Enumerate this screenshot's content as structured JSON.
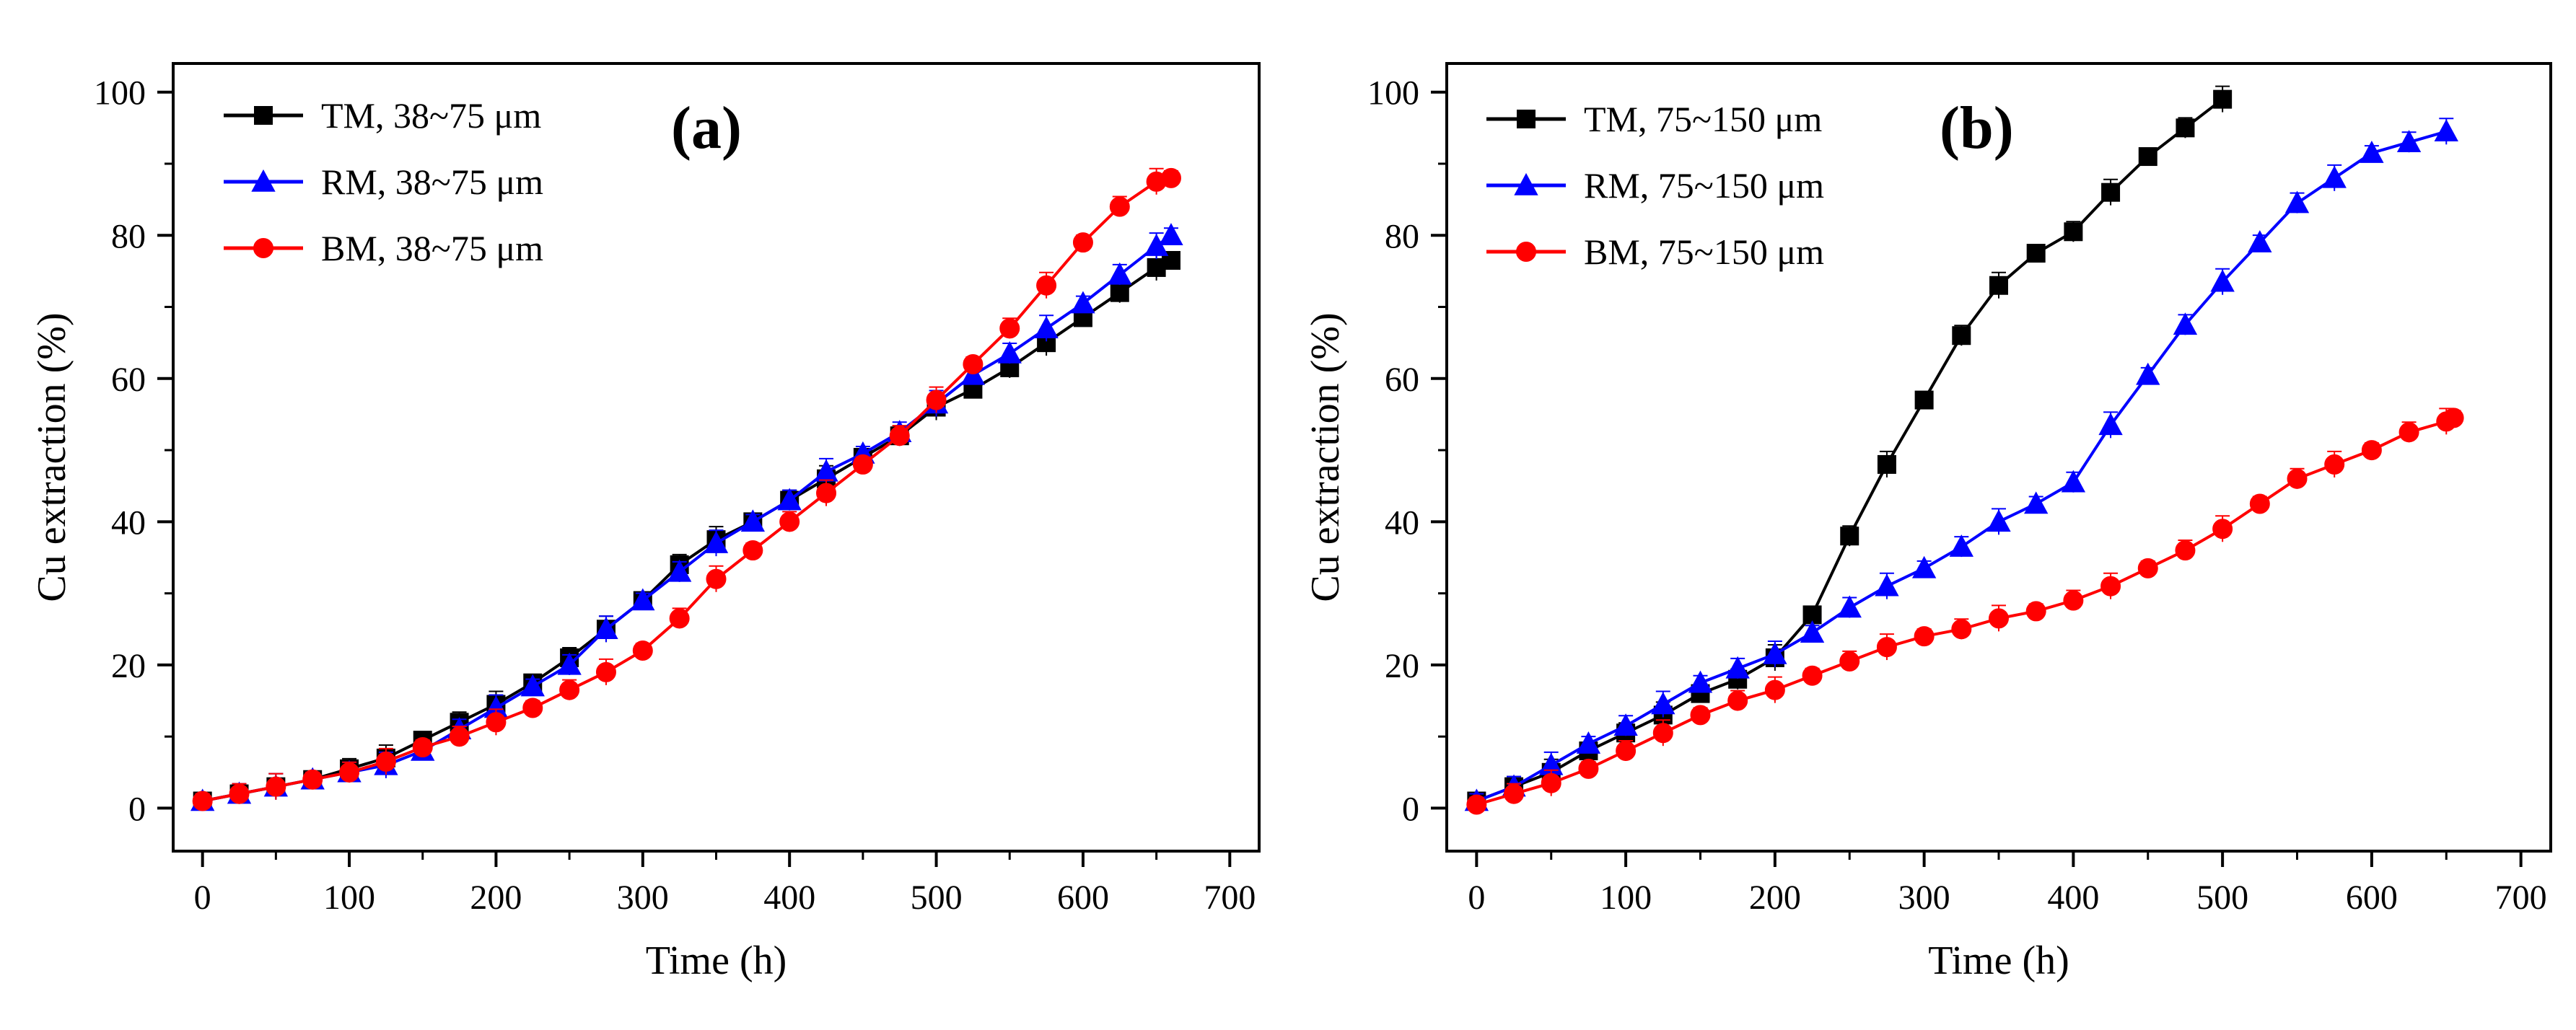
{
  "chart_data": [
    {
      "type": "line",
      "panel_label": "(a)",
      "xlabel": "Time (h)",
      "ylabel": "Cu extraction (%)",
      "xlim": [
        -20,
        720
      ],
      "ylim": [
        -6,
        104
      ],
      "xticks": [
        0,
        100,
        200,
        300,
        400,
        500,
        600,
        700
      ],
      "yticks": [
        0,
        20,
        40,
        60,
        80,
        100
      ],
      "grid": false,
      "legend_position": "top-left",
      "series": [
        {
          "name": "TM, 38~75 μm",
          "color": "#000000",
          "marker": "square",
          "x": [
            0,
            25,
            50,
            75,
            100,
            125,
            150,
            175,
            200,
            225,
            250,
            275,
            300,
            325,
            350,
            375,
            400,
            425,
            450,
            475,
            500,
            525,
            550,
            575,
            600,
            625,
            650,
            660
          ],
          "y": [
            1,
            2,
            3,
            4,
            5.5,
            7,
            9.5,
            12,
            14.5,
            17.5,
            21,
            25,
            29,
            34,
            37.5,
            40,
            43,
            46,
            49,
            52,
            56,
            58.5,
            61.5,
            65,
            68.5,
            72,
            75.5,
            76.5
          ]
        },
        {
          "name": "RM, 38~75 μm",
          "color": "#0000ff",
          "marker": "triangle",
          "x": [
            0,
            25,
            50,
            75,
            100,
            125,
            150,
            175,
            200,
            225,
            250,
            275,
            300,
            325,
            350,
            375,
            400,
            425,
            450,
            475,
            500,
            525,
            550,
            575,
            600,
            625,
            650,
            660
          ],
          "y": [
            1,
            2,
            3,
            4,
            5,
            6,
            8,
            11,
            14,
            17,
            20,
            25,
            29,
            33,
            37,
            40,
            43,
            47,
            49.5,
            52.5,
            56.5,
            60.5,
            63.5,
            67,
            70.5,
            74.5,
            78.5,
            80
          ]
        },
        {
          "name": "BM, 38~75 μm",
          "color": "#ff0000",
          "marker": "circle",
          "x": [
            0,
            25,
            50,
            75,
            100,
            125,
            150,
            175,
            200,
            225,
            250,
            275,
            300,
            325,
            350,
            375,
            400,
            425,
            450,
            475,
            500,
            525,
            550,
            575,
            600,
            625,
            650,
            660
          ],
          "y": [
            1,
            2,
            3,
            4,
            5,
            6.5,
            8.5,
            10,
            12,
            14,
            16.5,
            19,
            22,
            26.5,
            32,
            36,
            40,
            44,
            48,
            52,
            57,
            62,
            67,
            73,
            79,
            84,
            87.5,
            88
          ]
        }
      ]
    },
    {
      "type": "line",
      "panel_label": "(b)",
      "xlabel": "Time (h)",
      "ylabel": "Cu extraction (%)",
      "xlim": [
        -20,
        720
      ],
      "ylim": [
        -6,
        104
      ],
      "xticks": [
        0,
        100,
        200,
        300,
        400,
        500,
        600,
        700
      ],
      "yticks": [
        0,
        20,
        40,
        60,
        80,
        100
      ],
      "grid": false,
      "legend_position": "top-left",
      "series": [
        {
          "name": "TM, 75~150 μm",
          "color": "#000000",
          "marker": "square",
          "x": [
            0,
            25,
            50,
            75,
            100,
            125,
            150,
            175,
            200,
            225,
            250,
            275,
            300,
            325,
            350,
            375,
            400,
            425,
            450,
            475,
            500
          ],
          "y": [
            1,
            3,
            5,
            8,
            10.5,
            13,
            16,
            18,
            21,
            27,
            38,
            48,
            57,
            66,
            73,
            77.5,
            80.5,
            86,
            91,
            95,
            99
          ]
        },
        {
          "name": "RM, 75~150 μm",
          "color": "#0000ff",
          "marker": "triangle",
          "x": [
            0,
            25,
            50,
            75,
            100,
            125,
            150,
            175,
            200,
            225,
            250,
            275,
            300,
            325,
            350,
            375,
            400,
            425,
            450,
            475,
            500,
            525,
            550,
            575,
            600,
            625,
            650
          ],
          "y": [
            1,
            3,
            6,
            9,
            11.5,
            14.5,
            17.5,
            19.5,
            21.5,
            24.5,
            28,
            31,
            33.5,
            36.5,
            40,
            42.5,
            45.5,
            53.5,
            60.5,
            67.5,
            73.5,
            79,
            84.5,
            88,
            91.5,
            93,
            94.5
          ]
        },
        {
          "name": "BM, 75~150 μm",
          "color": "#ff0000",
          "marker": "circle",
          "x": [
            0,
            25,
            50,
            75,
            100,
            125,
            150,
            175,
            200,
            225,
            250,
            275,
            300,
            325,
            350,
            375,
            400,
            425,
            450,
            475,
            500,
            525,
            550,
            575,
            600,
            625,
            650,
            655
          ],
          "y": [
            0.5,
            2,
            3.5,
            5.5,
            8,
            10.5,
            13,
            15,
            16.5,
            18.5,
            20.5,
            22.5,
            24,
            25,
            26.5,
            27.5,
            29,
            31,
            33.5,
            36,
            39,
            42.5,
            46,
            48,
            50,
            52.5,
            54,
            54.5
          ]
        }
      ]
    }
  ]
}
